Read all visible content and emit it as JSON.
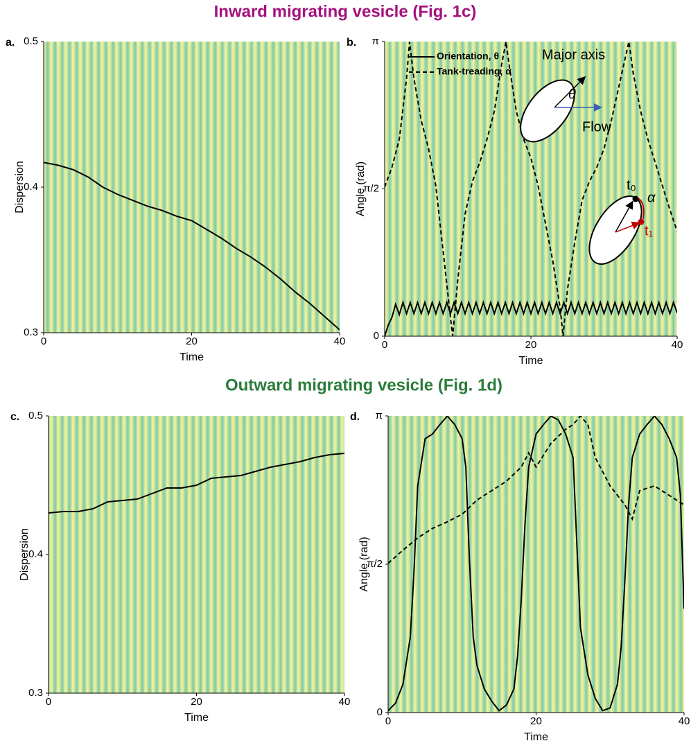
{
  "headings": [
    "Inward migrating vesicle (Fig. 1c)",
    "Outward migrating vesicle (Fig. 1d)"
  ],
  "chart_data": [
    {
      "type": "line",
      "panel_label": "a.",
      "xlabel": "Time",
      "ylabel": "Dispersion",
      "xlim": [
        0,
        40
      ],
      "ylim": [
        0.3,
        0.5
      ],
      "xticks": [
        0,
        20,
        40
      ],
      "yticks": [
        0.3,
        0.4,
        0.5
      ],
      "series": [
        {
          "color": "#000000",
          "style": "solid",
          "x": [
            0,
            2,
            4,
            6,
            8,
            10,
            12,
            14,
            16,
            18,
            20,
            22,
            24,
            26,
            28,
            30,
            32,
            34,
            36,
            38,
            40
          ],
          "values": [
            0.417,
            0.415,
            0.412,
            0.407,
            0.4,
            0.395,
            0.391,
            0.387,
            0.384,
            0.38,
            0.377,
            0.371,
            0.365,
            0.358,
            0.352,
            0.345,
            0.337,
            0.328,
            0.32,
            0.311,
            0.302
          ]
        }
      ]
    },
    {
      "type": "line",
      "panel_label": "b.",
      "xlabel": "Time",
      "ylabel": "Angle (rad)",
      "xlim": [
        0,
        40
      ],
      "ylim": [
        0,
        3.1416
      ],
      "xticks": [
        0,
        20,
        40
      ],
      "yticks": [
        0,
        {
          "value": 1.5708,
          "label": "π/2"
        },
        {
          "value": 3.1416,
          "label": "π"
        }
      ],
      "legend": "upper left",
      "annotations": [
        "Major axis",
        "θ",
        "Flow",
        "t₀",
        "α",
        "t₁"
      ],
      "series": [
        {
          "name": "Orientation, θ",
          "color": "#000000",
          "style": "solid",
          "x": [
            0,
            0.5,
            1,
            1.5,
            2,
            2.5,
            3,
            3.5,
            4,
            4.5,
            5,
            5.5,
            6,
            6.5,
            7,
            7.5,
            8,
            8.5,
            9,
            9.5,
            10,
            10.5,
            11,
            11.5,
            12,
            12.5,
            13,
            13.5,
            14,
            14.5,
            15,
            15.5,
            16,
            16.5,
            17,
            17.5,
            18,
            18.5,
            19,
            19.5,
            20,
            20.5,
            21,
            21.5,
            22,
            22.5,
            23,
            23.5,
            24,
            24.5,
            25,
            25.5,
            26,
            26.5,
            27,
            27.5,
            28,
            28.5,
            29,
            29.5,
            30,
            30.5,
            31,
            31.5,
            32,
            32.5,
            33,
            33.5,
            34,
            34.5,
            35,
            35.5,
            36,
            36.5,
            37,
            37.5,
            38,
            38.5,
            39,
            39.5,
            40
          ],
          "values": [
            0,
            0.12,
            0.2,
            0.34,
            0.23,
            0.36,
            0.24,
            0.36,
            0.24,
            0.36,
            0.24,
            0.36,
            0.24,
            0.36,
            0.24,
            0.36,
            0.24,
            0.36,
            0.24,
            0.36,
            0.24,
            0.36,
            0.24,
            0.36,
            0.24,
            0.36,
            0.24,
            0.36,
            0.24,
            0.36,
            0.24,
            0.36,
            0.24,
            0.36,
            0.24,
            0.36,
            0.24,
            0.36,
            0.24,
            0.36,
            0.24,
            0.36,
            0.24,
            0.36,
            0.24,
            0.36,
            0.24,
            0.36,
            0.24,
            0.36,
            0.24,
            0.36,
            0.24,
            0.36,
            0.24,
            0.36,
            0.24,
            0.36,
            0.24,
            0.36,
            0.24,
            0.36,
            0.24,
            0.36,
            0.24,
            0.36,
            0.24,
            0.36,
            0.24,
            0.36,
            0.24,
            0.36,
            0.24,
            0.36,
            0.24,
            0.36,
            0.24,
            0.36,
            0.24,
            0.36,
            0.25
          ]
        },
        {
          "name": "Tank-treading, α",
          "color": "#000000",
          "style": "dashed",
          "x": [
            0,
            1,
            2,
            3,
            3.4,
            4,
            5,
            6,
            7,
            8,
            9,
            9.3,
            10,
            11,
            12,
            13,
            14,
            15,
            16,
            16.6,
            17,
            18,
            19,
            20,
            21,
            22,
            23,
            24,
            24.4,
            25,
            26,
            27,
            28,
            29,
            30,
            31,
            32,
            33,
            33.4,
            34,
            35,
            36,
            37,
            38,
            39,
            40
          ],
          "values": [
            1.59,
            1.8,
            2.1,
            2.75,
            3.14,
            2.75,
            2.3,
            2.0,
            1.6,
            0.9,
            0.2,
            0,
            0.6,
            1.3,
            1.65,
            1.85,
            2.1,
            2.4,
            2.9,
            3.14,
            2.9,
            2.4,
            2.1,
            1.9,
            1.6,
            1.2,
            0.8,
            0.3,
            0,
            0.5,
            1.0,
            1.45,
            1.65,
            1.8,
            2.0,
            2.3,
            2.65,
            3.0,
            3.14,
            2.8,
            2.4,
            2.1,
            1.85,
            1.6,
            1.35,
            1.12
          ]
        }
      ]
    },
    {
      "type": "line",
      "panel_label": "c.",
      "xlabel": "Time",
      "ylabel": "Dispersion",
      "xlim": [
        0,
        40
      ],
      "ylim": [
        0.3,
        0.5
      ],
      "xticks": [
        0,
        20,
        40
      ],
      "yticks": [
        0.3,
        0.4,
        0.5
      ],
      "series": [
        {
          "color": "#000000",
          "style": "solid",
          "x": [
            0,
            2,
            4,
            6,
            8,
            10,
            12,
            14,
            16,
            18,
            20,
            22,
            24,
            26,
            28,
            30,
            32,
            34,
            36,
            38,
            40
          ],
          "values": [
            0.43,
            0.431,
            0.431,
            0.433,
            0.438,
            0.439,
            0.44,
            0.444,
            0.448,
            0.448,
            0.45,
            0.455,
            0.456,
            0.457,
            0.46,
            0.463,
            0.465,
            0.467,
            0.47,
            0.472,
            0.473
          ]
        }
      ]
    },
    {
      "type": "line",
      "panel_label": "d.",
      "xlabel": "Time",
      "ylabel": "Angle (rad)",
      "xlim": [
        0,
        40
      ],
      "ylim": [
        0,
        3.1416
      ],
      "xticks": [
        0,
        20,
        40
      ],
      "yticks": [
        0,
        {
          "value": 1.5708,
          "label": "π/2"
        },
        {
          "value": 3.1416,
          "label": "π"
        }
      ],
      "series": [
        {
          "color": "#000000",
          "style": "solid",
          "x": [
            0,
            1,
            2,
            3,
            3.5,
            4,
            5,
            6,
            7,
            8,
            9,
            10,
            10.5,
            11,
            11.5,
            12,
            13,
            14,
            15,
            16,
            17,
            17.5,
            18,
            18.5,
            19,
            20,
            21,
            22,
            23,
            24,
            25,
            25.5,
            26,
            27,
            28,
            29,
            30,
            31,
            31.5,
            32,
            32.5,
            33,
            34,
            35,
            36,
            37,
            38,
            39,
            39.5,
            40
          ],
          "values": [
            0.02,
            0.1,
            0.3,
            0.8,
            1.5,
            2.4,
            2.9,
            2.95,
            3.05,
            3.14,
            3.05,
            2.9,
            2.6,
            1.6,
            0.8,
            0.5,
            0.25,
            0.12,
            0.02,
            0.08,
            0.25,
            0.6,
            1.2,
            2.0,
            2.6,
            2.95,
            3.05,
            3.14,
            3.1,
            2.95,
            2.7,
            1.8,
            0.9,
            0.4,
            0.15,
            0.02,
            0.05,
            0.3,
            0.7,
            1.4,
            2.2,
            2.7,
            2.95,
            3.05,
            3.14,
            3.05,
            2.9,
            2.7,
            2.3,
            1.1
          ]
        },
        {
          "color": "#000000",
          "style": "dashed",
          "x": [
            0,
            2,
            4,
            6,
            8,
            10,
            12,
            14,
            16,
            18,
            19,
            20,
            22,
            24,
            25,
            26,
            27,
            28,
            30,
            32,
            33,
            34,
            36,
            38,
            40
          ],
          "values": [
            1.58,
            1.72,
            1.85,
            1.95,
            2.02,
            2.1,
            2.25,
            2.35,
            2.45,
            2.6,
            2.75,
            2.6,
            2.85,
            3.0,
            3.05,
            3.14,
            3.05,
            2.7,
            2.4,
            2.2,
            2.05,
            2.35,
            2.4,
            2.3,
            2.2
          ]
        }
      ]
    }
  ]
}
